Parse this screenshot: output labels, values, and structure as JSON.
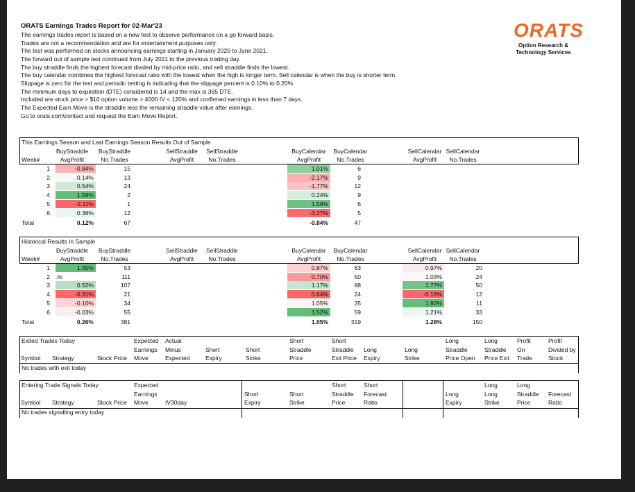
{
  "header": {
    "title": "ORATS Earnings Trades Report for 02-Mar'23",
    "lines": [
      "The earnings trades report is based on a new test to observe performance on a go forward basis.",
      "Trades are not a recommendation and are for entertainment purposes only.",
      "The test was performed on stocks announcing earnings starting in January 2020 to June 2021.",
      "The forward out of sample test continued from July 2021 to the previous trading day.",
      "The buy straddle finds the highest forecast divided by mid-price ratio, and sell straddle finds the lowest.",
      "The buy calendar combines the highest forecast ratio with the lowest when the high is longer term. Sell calendar is when the buy is shorter term.",
      "Slippage is zero for the test and periodic testing is indicating that the slippage percent is 0.10% to 0.20%.",
      "The minimum days to expiration (DTE) considered is 14 and the max is 365 DTE.",
      "Included are stock price > $10 option volume > 4000 IV < 120% and confirmed earnings in less than 7 days.",
      "The Expected Earn Move is the straddle less the remaining straddle value after earnings.",
      "Go to orats.com\\contact and request the Earn Move Report."
    ]
  },
  "logo": {
    "brand": "ORATS",
    "tagline": [
      "Option Research &",
      "Technology Services"
    ]
  },
  "sections": [
    {
      "title": "This Earnings Season and Last Earnings Season Results Out of Sample",
      "week_label": "Week#",
      "column_headers": [
        [
          "BuyStraddle",
          "AvgProfit"
        ],
        [
          "BuyStraddle",
          "No.Trades"
        ],
        [
          "SellStraddle",
          "AvgProfit"
        ],
        [
          "SellStraddle",
          "No.Trades"
        ],
        [
          "BuyCalendar",
          "AvgProfit"
        ],
        [
          "BuyCalendar",
          "No.Trades"
        ],
        [
          "SellCalendar",
          "AvgProfit"
        ],
        [
          "SellCalendar",
          "No.Trades"
        ]
      ],
      "rows": [
        {
          "week": 1,
          "cells": [
            "-0.84%",
            "15",
            null,
            null,
            "1.01%",
            "6",
            null,
            null
          ],
          "colors": [
            "#f9b3b4",
            null,
            null,
            null,
            "#8fd0a0",
            null,
            null,
            null
          ]
        },
        {
          "week": 2,
          "cells": [
            "0.14%",
            "13",
            null,
            null,
            "-2.17%",
            "9",
            null,
            null
          ],
          "colors": [
            "#f6f9f7",
            null,
            null,
            null,
            "#fab0b1",
            null,
            null,
            null
          ]
        },
        {
          "week": 3,
          "cells": [
            "0.54%",
            "24",
            null,
            null,
            "-1.77%",
            "12",
            null,
            null
          ],
          "colors": [
            "#cdebd5",
            null,
            null,
            null,
            "#fbc2c3",
            null,
            null,
            null
          ]
        },
        {
          "week": 4,
          "cells": [
            "1.59%",
            "2",
            null,
            null,
            "0.24%",
            "9",
            null,
            null
          ],
          "colors": [
            "#63be7b",
            null,
            null,
            null,
            "#d5eedc",
            null,
            null,
            null
          ]
        },
        {
          "week": 5,
          "cells": [
            "-2.11%",
            "1",
            null,
            null,
            "1.59%",
            "6",
            null,
            null
          ],
          "colors": [
            "#f8696b",
            null,
            null,
            null,
            "#6cc283",
            null,
            null,
            null
          ]
        },
        {
          "week": 6,
          "cells": [
            "0.38%",
            "12",
            null,
            null,
            "-3.27%",
            "5",
            null,
            null
          ],
          "colors": [
            "#eaf5ed",
            null,
            null,
            null,
            "#f8696b",
            null,
            null,
            null
          ]
        }
      ],
      "total": {
        "label": "Total",
        "cells": [
          "0.12%",
          "67",
          null,
          null,
          "-0.84%",
          "47",
          null,
          null
        ]
      }
    },
    {
      "title": "Historical Results In Sample",
      "week_label": "Week#",
      "column_headers": [
        [
          "BuyStraddle",
          "AvgProfit"
        ],
        [
          "BuyStraddle",
          "No.Trades"
        ],
        [
          "SellStraddle",
          "AvgProfit"
        ],
        [
          "SellStraddle",
          "No.Trades"
        ],
        [
          "BuyCalendar",
          "AvgProfit"
        ],
        [
          "BuyCalendar",
          "No.Trades"
        ],
        [
          "SellCalendar",
          "AvgProfit"
        ],
        [
          "SellCalendar",
          "No.Trades"
        ]
      ],
      "rows": [
        {
          "week": 1,
          "cells": [
            "1.05%",
            "53",
            null,
            null,
            "0.87%",
            "63",
            "0.97%",
            "20"
          ],
          "colors": [
            "#63be7b",
            null,
            null,
            null,
            "#fbd1d2",
            null,
            "#fcebec",
            null
          ]
        },
        {
          "week": 2,
          "cells": [
            ".%",
            "111",
            null,
            null,
            "0.70%",
            "50",
            "1.03%",
            "24"
          ],
          "colors": [
            null,
            null,
            null,
            null,
            "#f89a9b",
            null,
            "#fbf7f7",
            null
          ]
        },
        {
          "week": 3,
          "cells": [
            "0.52%",
            "107",
            null,
            null,
            "1.17%",
            "88",
            "1.77%",
            "50"
          ],
          "colors": [
            "#b6e0c1",
            null,
            null,
            null,
            "#c5e6ce",
            null,
            "#72c488",
            null
          ]
        },
        {
          "week": 4,
          "cells": [
            "-0.31%",
            "21",
            null,
            null,
            "0.64%",
            "24",
            "-0.16%",
            "12"
          ],
          "colors": [
            "#f8696b",
            null,
            null,
            null,
            "#f8696b",
            null,
            "#f8696b",
            null
          ]
        },
        {
          "week": 5,
          "cells": [
            "-0.10%",
            "34",
            null,
            null,
            "1.05%",
            "35",
            "1.92%",
            "11"
          ],
          "colors": [
            "#fbd5d6",
            null,
            null,
            null,
            "#f9f4f4",
            null,
            "#63be7b",
            null
          ]
        },
        {
          "week": 6,
          "cells": [
            "-0.03%",
            "55",
            null,
            null,
            "1.52%",
            "59",
            "1.21%",
            "33"
          ],
          "colors": [
            "#f8f0f0",
            null,
            null,
            null,
            "#63be7b",
            null,
            "#edf6f0",
            null
          ]
        }
      ],
      "total": {
        "label": "Total",
        "cells": [
          "0.26%",
          "381",
          null,
          null,
          "1.05%",
          "319",
          "1.28%",
          "150"
        ]
      }
    }
  ],
  "trade_tables": [
    {
      "title": "Exited Trades Today",
      "columns": [
        [
          "Symbol"
        ],
        [
          "Strategy"
        ],
        [
          "Stock Price"
        ],
        [
          "Expected",
          "Earnings",
          "Move"
        ],
        [
          "Actual",
          "Minus",
          "Expected"
        ],
        [
          "Short",
          "Expiry"
        ],
        [
          "Short",
          "Strike"
        ],
        [
          "Short",
          "Straddle",
          "Price"
        ],
        [
          "Short",
          "Straddle",
          "Exit Price"
        ],
        [
          "Long",
          "Expiry"
        ],
        [
          "Long",
          "Strike"
        ],
        [
          "Long",
          "Straddle",
          "Price Open"
        ],
        [
          "Long",
          "Straddle",
          "Price Exit"
        ],
        [
          "Profit",
          "On",
          "Trade"
        ],
        [
          "Profit",
          "Divided by",
          "Stock"
        ]
      ],
      "message": "No trades with exit today"
    },
    {
      "title": "Entering Trade Signals Today",
      "columns": [
        [
          "Symbol"
        ],
        [
          "Strategy"
        ],
        [
          "Stock Price"
        ],
        [
          "Expected",
          "Earnings",
          "Move"
        ],
        [
          "IV30day"
        ],
        [
          "Short",
          "Expiry"
        ],
        [
          "Short",
          "Strike"
        ],
        [
          "Short",
          "Straddle",
          "Price"
        ],
        [
          "Short",
          "Forecast",
          "Ratio"
        ],
        [
          "Long",
          "Expiry"
        ],
        [
          "Long",
          "Long",
          "Strike"
        ],
        [
          "Long",
          "Straddle",
          "Price"
        ],
        [
          "Forecast",
          "Ratio"
        ]
      ],
      "message": "No trades signalling entry today"
    }
  ]
}
